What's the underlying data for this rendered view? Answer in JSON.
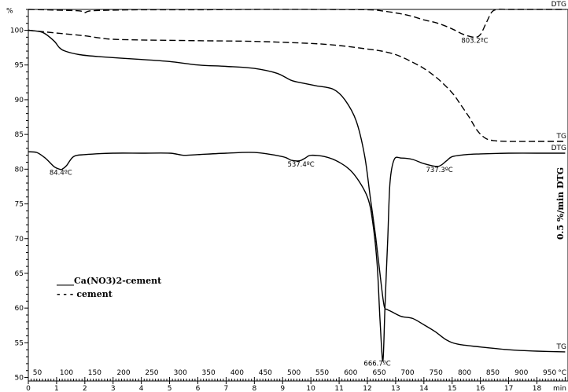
{
  "chart_data": {
    "type": "line",
    "title": "",
    "y_axis": {
      "label": "%",
      "ticks": [
        50,
        55,
        60,
        65,
        70,
        75,
        80,
        85,
        90,
        95,
        100
      ],
      "ylim": [
        49.5,
        103
      ]
    },
    "x_axis_time": {
      "unit_label": "min",
      "ticks": [
        0,
        1,
        2,
        3,
        4,
        5,
        6,
        7,
        8,
        9,
        10,
        11,
        12,
        13,
        14,
        15,
        16,
        17,
        18
      ],
      "xlim": [
        0,
        19.1
      ]
    },
    "x_axis_temp": {
      "unit_label": "°C",
      "ticks": [
        50,
        100,
        150,
        200,
        250,
        300,
        350,
        400,
        450,
        500,
        550,
        600,
        650,
        700,
        750,
        800,
        850,
        900,
        950
      ],
      "positions_min": [
        0.32,
        1.35,
        2.35,
        3.37,
        4.37,
        5.38,
        6.38,
        7.39,
        8.39,
        9.4,
        10.4,
        11.41,
        12.42,
        13.42,
        14.43,
        15.44,
        16.44,
        17.45,
        18.45
      ]
    },
    "right_axis_label": "0.5 %/min DTG",
    "legend": {
      "position": "bottom-left",
      "entries": [
        {
          "marker": "____",
          "label": "Ca(NO3)2-cement",
          "style": "solid"
        },
        {
          "marker": "- - -",
          "label": "cement",
          "style": "dashed"
        }
      ]
    },
    "series": [
      {
        "key": "ca-tg",
        "style": "solid",
        "end_label": "TG",
        "x": [
          0,
          0.5,
          0.9,
          1.1,
          1.3,
          1.8,
          2.5,
          4,
          5,
          6,
          7,
          8,
          8.8,
          9.3,
          9.7,
          10.2,
          10.8,
          11.2,
          11.6,
          11.9,
          12.1,
          12.3,
          12.5,
          12.6,
          12.7,
          12.85,
          13.2,
          13.6,
          14,
          14.4,
          14.8,
          15.2,
          16,
          17,
          18,
          19
        ],
        "y": [
          100,
          99.7,
          98.5,
          97.5,
          97,
          96.5,
          96.2,
          95.8,
          95.5,
          95,
          94.8,
          94.5,
          93.8,
          92.8,
          92.4,
          92,
          91.5,
          90,
          87,
          82,
          76,
          70,
          63,
          60.2,
          59.8,
          59.5,
          58.8,
          58.5,
          57.6,
          56.6,
          55.4,
          54.8,
          54.4,
          54,
          53.8,
          53.7
        ]
      },
      {
        "key": "cem-tg",
        "style": "dashed",
        "end_label": "TG",
        "x": [
          0,
          1,
          2,
          2.5,
          3,
          4,
          6,
          8,
          10,
          11,
          12,
          12.5,
          13,
          13.5,
          14,
          14.5,
          15,
          15.3,
          15.6,
          15.9,
          16.2,
          16.5,
          17,
          18,
          19
        ],
        "y": [
          100,
          99.6,
          99.2,
          98.9,
          98.7,
          98.6,
          98.5,
          98.4,
          98.1,
          97.8,
          97.3,
          97,
          96.5,
          95.6,
          94.5,
          93,
          91,
          89.3,
          87.5,
          85.5,
          84.4,
          84.1,
          84,
          84,
          84
        ]
      },
      {
        "key": "ca-dtg",
        "style": "solid",
        "end_label": "DTG",
        "x": [
          0,
          0.3,
          0.6,
          0.9,
          1.1,
          1.2,
          1.35,
          1.6,
          2,
          3,
          4,
          5,
          5.5,
          6,
          7,
          8,
          9,
          9.3,
          9.6,
          9.8,
          10,
          10.5,
          11,
          11.5,
          12,
          12.2,
          12.35,
          12.45,
          12.55,
          12.62,
          12.72,
          12.8,
          12.95,
          13.2,
          13.6,
          14,
          14.5,
          14.8,
          15,
          15.5,
          16,
          17,
          18,
          19
        ],
        "y": [
          82.5,
          82.4,
          81.6,
          80.4,
          80,
          80,
          80.5,
          81.8,
          82.1,
          82.3,
          82.3,
          82.3,
          82,
          82.1,
          82.3,
          82.4,
          81.8,
          81.3,
          81.2,
          81.6,
          82,
          81.8,
          81,
          79.4,
          76,
          72,
          66,
          58,
          52.4,
          60,
          70,
          78,
          81.4,
          81.6,
          81.4,
          80.8,
          80.4,
          81.2,
          81.8,
          82.1,
          82.2,
          82.3,
          82.3,
          82.3
        ]
      },
      {
        "key": "cem-dtg",
        "style": "dashed",
        "end_label": "DTG",
        "x": [
          0,
          1,
          1.8,
          2,
          2.2,
          3,
          4,
          6,
          8,
          10,
          12,
          12.5,
          13,
          13.5,
          14,
          14.5,
          15,
          15.4,
          15.8,
          16,
          16.2,
          16.4,
          16.6,
          17,
          18,
          19
        ],
        "y": [
          103,
          102.9,
          102.8,
          102.55,
          102.8,
          102.9,
          102.95,
          102.95,
          103,
          103,
          102.95,
          102.8,
          102.5,
          102.1,
          101.5,
          101,
          100.2,
          99.4,
          99,
          99.4,
          101,
          102.6,
          103,
          103,
          103,
          103
        ]
      }
    ],
    "annotations": [
      {
        "text": "84.4ºC",
        "x": 1.15,
        "y": 79.2
      },
      {
        "text": "537.4ºC",
        "x": 9.65,
        "y": 80.4
      },
      {
        "text": "666.7ºC",
        "x": 12.35,
        "y": 51.7
      },
      {
        "text": "737.3ºC",
        "x": 14.55,
        "y": 79.6
      },
      {
        "text": "803.2ºC",
        "x": 15.8,
        "y": 98.2
      }
    ]
  }
}
